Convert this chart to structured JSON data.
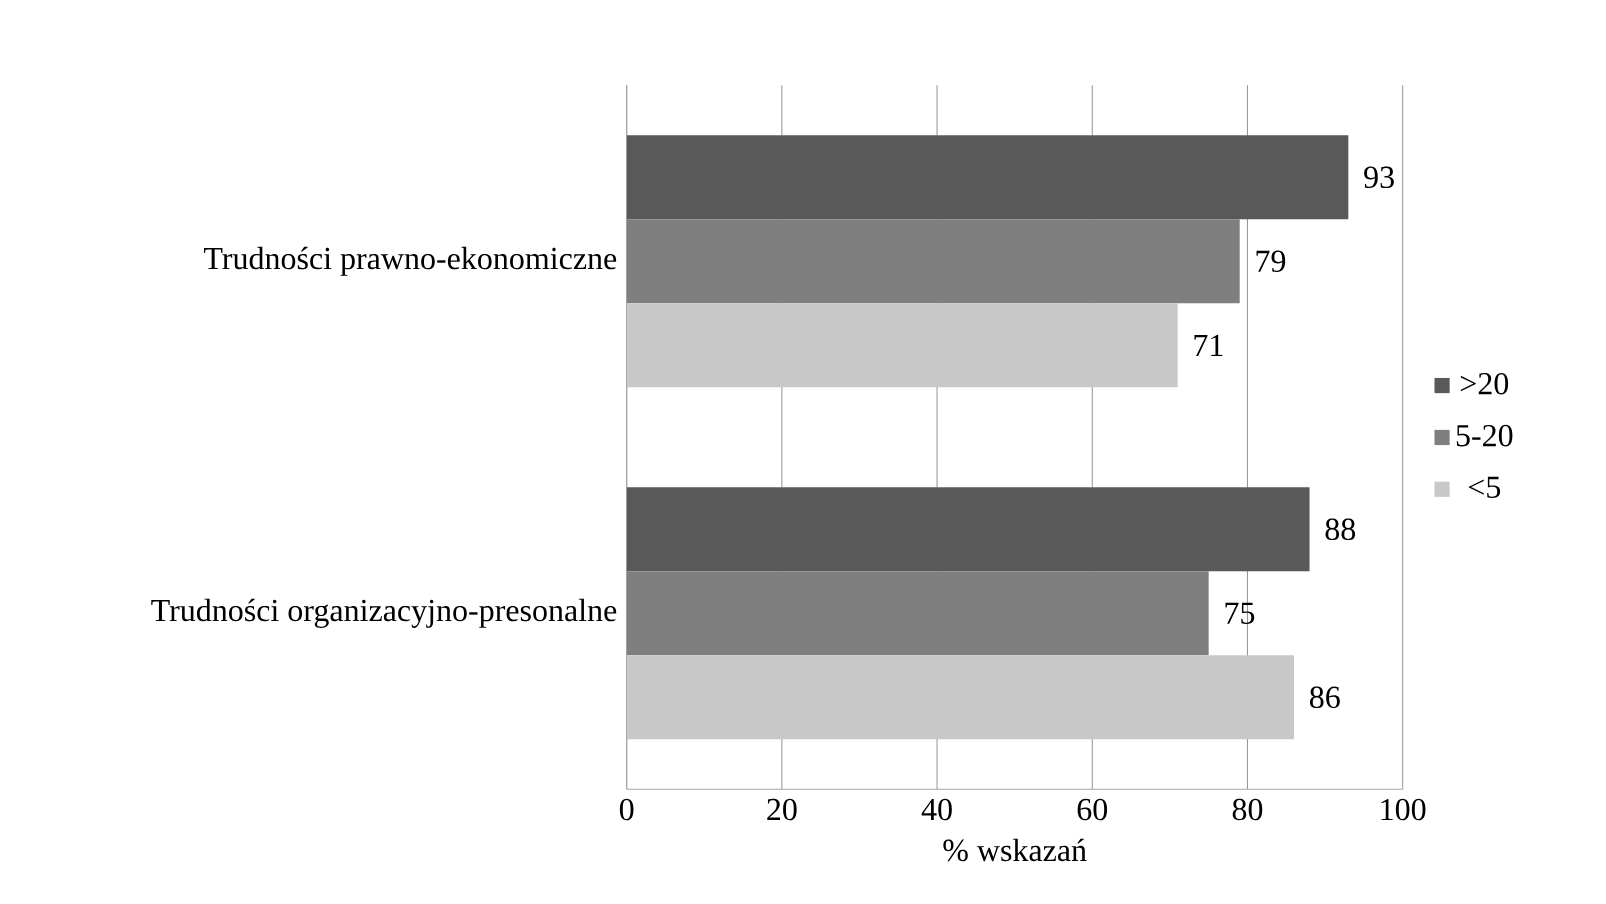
{
  "chart_data": {
    "type": "bar",
    "orientation": "horizontal",
    "xlabel": "% wskazań",
    "categories": [
      "Trudności prawno-ekonomiczne",
      "Trudności organizacyjno-presonalne"
    ],
    "series": [
      {
        "name": ">20",
        "color": "#595959",
        "values": [
          93,
          88
        ]
      },
      {
        "name": "5-20",
        "color": "#7f7f7f",
        "values": [
          79,
          75
        ]
      },
      {
        "name": "<5",
        "color": "#c8c8c8",
        "values": [
          71,
          86
        ]
      }
    ],
    "xlim": [
      0,
      100
    ],
    "xticks": [
      0,
      20,
      40,
      60,
      80,
      100
    ],
    "grid": "x",
    "legend": "right",
    "data_labels": true
  }
}
